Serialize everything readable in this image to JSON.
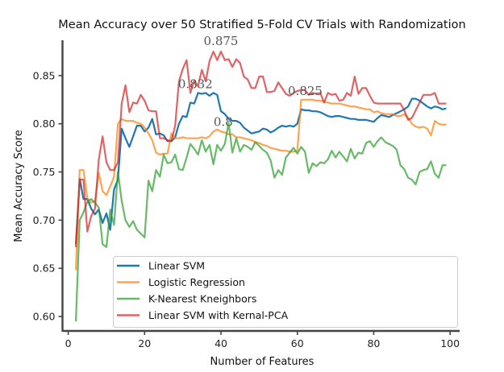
{
  "chart_data": {
    "type": "line",
    "title": "Mean Accuracy over 50 Stratified 5-Fold CV Trials with Randomization",
    "xlabel": "Number of Features",
    "ylabel": "Mean Accuracy Score",
    "xlim": [
      -1.5,
      102.5
    ],
    "ylim": [
      0.585,
      0.885
    ],
    "xticks": [
      0,
      20,
      40,
      60,
      80,
      100
    ],
    "yticks": [
      0.6,
      0.65,
      0.7,
      0.75,
      0.8,
      0.85
    ],
    "ytick_labels": [
      "0.60",
      "0.65",
      "0.70",
      "0.75",
      "0.80",
      "0.85"
    ],
    "grid": false,
    "legend_position": "lower-center",
    "series": [
      {
        "name": "Linear SVM",
        "color": "#1f77b4",
        "x": [
          2,
          3,
          4,
          5,
          6,
          7,
          8,
          9,
          10,
          11,
          12,
          13,
          14,
          15,
          16,
          17,
          18,
          19,
          20,
          21,
          22,
          23,
          24,
          25,
          26,
          27,
          28,
          29,
          30,
          31,
          32,
          33,
          34,
          35,
          36,
          37,
          38,
          39,
          40,
          41,
          42,
          43,
          44,
          45,
          46,
          47,
          48,
          49,
          50,
          51,
          52,
          53,
          54,
          55,
          56,
          57,
          58,
          59,
          60,
          61,
          62,
          63,
          64,
          65,
          66,
          67,
          68,
          69,
          70,
          71,
          72,
          73,
          74,
          75,
          76,
          77,
          78,
          79,
          80,
          81,
          82,
          83,
          84,
          85,
          86,
          87,
          88,
          89,
          90,
          91,
          92,
          93,
          94,
          95,
          96,
          97,
          98,
          99
        ],
        "y": [
          0.675,
          0.743,
          0.722,
          0.722,
          0.712,
          0.706,
          0.711,
          0.697,
          0.707,
          0.69,
          0.732,
          0.742,
          0.795,
          0.785,
          0.776,
          0.787,
          0.798,
          0.798,
          0.792,
          0.796,
          0.805,
          0.789,
          0.79,
          0.788,
          0.782,
          0.782,
          0.786,
          0.8,
          0.808,
          0.807,
          0.822,
          0.821,
          0.832,
          0.831,
          0.832,
          0.829,
          0.832,
          0.83,
          0.813,
          0.81,
          0.805,
          0.803,
          0.803,
          0.801,
          0.796,
          0.793,
          0.79,
          0.791,
          0.792,
          0.795,
          0.794,
          0.791,
          0.793,
          0.796,
          0.798,
          0.797,
          0.798,
          0.797,
          0.8,
          0.815,
          0.814,
          0.814,
          0.813,
          0.813,
          0.812,
          0.81,
          0.808,
          0.807,
          0.808,
          0.808,
          0.807,
          0.806,
          0.805,
          0.805,
          0.804,
          0.804,
          0.804,
          0.803,
          0.802,
          0.806,
          0.809,
          0.808,
          0.807,
          0.809,
          0.811,
          0.813,
          0.815,
          0.818,
          0.826,
          0.826,
          0.824,
          0.821,
          0.818,
          0.816,
          0.818,
          0.817,
          0.815,
          0.816
        ]
      },
      {
        "name": "Logistic Regression",
        "color": "#ff7f0e",
        "x": [
          2,
          3,
          4,
          5,
          6,
          7,
          8,
          9,
          10,
          11,
          12,
          13,
          14,
          15,
          16,
          17,
          18,
          19,
          20,
          21,
          22,
          23,
          24,
          25,
          26,
          27,
          28,
          29,
          30,
          31,
          32,
          33,
          34,
          35,
          36,
          37,
          38,
          39,
          40,
          41,
          42,
          43,
          44,
          45,
          46,
          47,
          48,
          49,
          50,
          51,
          52,
          53,
          54,
          55,
          56,
          57,
          58,
          59,
          60,
          61,
          62,
          63,
          64,
          65,
          66,
          67,
          68,
          69,
          70,
          71,
          72,
          73,
          74,
          75,
          76,
          77,
          78,
          79,
          80,
          81,
          82,
          83,
          84,
          85,
          86,
          87,
          88,
          89,
          90,
          91,
          92,
          93,
          94,
          95,
          96,
          97,
          98,
          99
        ],
        "y": [
          0.648,
          0.752,
          0.752,
          0.723,
          0.718,
          0.72,
          0.749,
          0.73,
          0.726,
          0.735,
          0.745,
          0.8,
          0.805,
          0.803,
          0.803,
          0.803,
          0.801,
          0.8,
          0.796,
          0.79,
          0.783,
          0.77,
          0.768,
          0.769,
          0.769,
          0.79,
          0.785,
          0.785,
          0.786,
          0.785,
          0.785,
          0.785,
          0.785,
          0.786,
          0.785,
          0.787,
          0.792,
          0.794,
          0.792,
          0.791,
          0.789,
          0.789,
          0.786,
          0.786,
          0.785,
          0.784,
          0.783,
          0.781,
          0.78,
          0.778,
          0.777,
          0.775,
          0.774,
          0.773,
          0.772,
          0.772,
          0.771,
          0.771,
          0.772,
          0.825,
          0.825,
          0.825,
          0.825,
          0.824,
          0.824,
          0.823,
          0.822,
          0.821,
          0.821,
          0.821,
          0.82,
          0.819,
          0.818,
          0.818,
          0.817,
          0.816,
          0.815,
          0.815,
          0.812,
          0.813,
          0.811,
          0.81,
          0.81,
          0.81,
          0.808,
          0.808,
          0.81,
          0.806,
          0.8,
          0.797,
          0.796,
          0.797,
          0.795,
          0.788,
          0.803,
          0.8,
          0.799,
          0.799
        ]
      },
      {
        "name": "K-Nearest Kneighbors",
        "color": "#2ca02c",
        "x": [
          2,
          3,
          4,
          5,
          6,
          7,
          8,
          9,
          10,
          11,
          12,
          13,
          14,
          15,
          16,
          17,
          18,
          19,
          20,
          21,
          22,
          23,
          24,
          25,
          26,
          27,
          28,
          29,
          30,
          31,
          32,
          33,
          34,
          35,
          36,
          37,
          38,
          39,
          40,
          41,
          42,
          43,
          44,
          45,
          46,
          47,
          48,
          49,
          50,
          51,
          52,
          53,
          54,
          55,
          56,
          57,
          58,
          59,
          60,
          61,
          62,
          63,
          64,
          65,
          66,
          67,
          68,
          69,
          70,
          71,
          72,
          73,
          74,
          75,
          76,
          77,
          78,
          79,
          80,
          81,
          82,
          83,
          84,
          85,
          86,
          87,
          88,
          89,
          90,
          91,
          92,
          93,
          94,
          95,
          96,
          97,
          98,
          99
        ],
        "y": [
          0.595,
          0.7,
          0.708,
          0.719,
          0.722,
          0.718,
          0.713,
          0.675,
          0.672,
          0.711,
          0.695,
          0.75,
          0.72,
          0.7,
          0.693,
          0.699,
          0.69,
          0.686,
          0.682,
          0.741,
          0.73,
          0.752,
          0.745,
          0.768,
          0.759,
          0.76,
          0.768,
          0.753,
          0.752,
          0.765,
          0.779,
          0.774,
          0.768,
          0.783,
          0.771,
          0.778,
          0.758,
          0.778,
          0.772,
          0.779,
          0.801,
          0.77,
          0.785,
          0.771,
          0.778,
          0.776,
          0.773,
          0.781,
          0.777,
          0.773,
          0.77,
          0.762,
          0.744,
          0.752,
          0.747,
          0.765,
          0.77,
          0.775,
          0.769,
          0.776,
          0.771,
          0.749,
          0.759,
          0.756,
          0.76,
          0.759,
          0.763,
          0.772,
          0.765,
          0.771,
          0.766,
          0.761,
          0.774,
          0.764,
          0.77,
          0.769,
          0.78,
          0.782,
          0.776,
          0.782,
          0.786,
          0.781,
          0.779,
          0.777,
          0.773,
          0.757,
          0.753,
          0.744,
          0.742,
          0.737,
          0.75,
          0.752,
          0.753,
          0.761,
          0.748,
          0.744,
          0.757,
          0.757
        ]
      },
      {
        "name": "Linear SVM with Kernal-PCA",
        "color": "#d62728",
        "x": [
          2,
          3,
          4,
          5,
          6,
          7,
          8,
          9,
          10,
          11,
          12,
          13,
          14,
          15,
          16,
          17,
          18,
          19,
          20,
          21,
          22,
          23,
          24,
          25,
          26,
          27,
          28,
          29,
          30,
          31,
          32,
          33,
          34,
          35,
          36,
          37,
          38,
          39,
          40,
          41,
          42,
          43,
          44,
          45,
          46,
          47,
          48,
          49,
          50,
          51,
          52,
          53,
          54,
          55,
          56,
          57,
          58,
          59,
          60,
          61,
          62,
          63,
          64,
          65,
          66,
          67,
          68,
          69,
          70,
          71,
          72,
          73,
          74,
          75,
          76,
          77,
          78,
          79,
          80,
          81,
          82,
          83,
          84,
          85,
          86,
          87,
          88,
          89,
          90,
          91,
          92,
          93,
          94,
          95,
          96,
          97,
          98,
          99
        ],
        "y": [
          0.672,
          0.742,
          0.742,
          0.688,
          0.704,
          0.712,
          0.763,
          0.787,
          0.76,
          0.752,
          0.752,
          0.76,
          0.821,
          0.84,
          0.812,
          0.822,
          0.821,
          0.83,
          0.824,
          0.814,
          0.813,
          0.813,
          0.785,
          0.785,
          0.783,
          0.782,
          0.798,
          0.844,
          0.857,
          0.866,
          0.832,
          0.845,
          0.839,
          0.856,
          0.844,
          0.865,
          0.875,
          0.866,
          0.875,
          0.866,
          0.867,
          0.859,
          0.867,
          0.863,
          0.849,
          0.846,
          0.837,
          0.837,
          0.849,
          0.849,
          0.833,
          0.833,
          0.834,
          0.843,
          0.837,
          0.831,
          0.829,
          0.832,
          0.834,
          0.835,
          0.835,
          0.83,
          0.832,
          0.831,
          0.832,
          0.822,
          0.832,
          0.83,
          0.831,
          0.824,
          0.825,
          0.832,
          0.829,
          0.849,
          0.831,
          0.837,
          0.837,
          0.829,
          0.822,
          0.821,
          0.821,
          0.821,
          0.821,
          0.821,
          0.821,
          0.821,
          0.814,
          0.804,
          0.806,
          0.814,
          0.822,
          0.83,
          0.83,
          0.83,
          0.832,
          0.821,
          0.821,
          0.821
        ]
      }
    ],
    "annotations": [
      {
        "text": "0.875",
        "x": 40,
        "y": 0.875,
        "series": "Linear SVM with Kernal-PCA"
      },
      {
        "text": "0.832",
        "x": 35,
        "y": 0.832,
        "series": "Linear SVM"
      },
      {
        "text": "0.825",
        "x": 61,
        "y": 0.825,
        "series": "Logistic Regression"
      },
      {
        "text": "0.8",
        "x": 41,
        "y": 0.8,
        "series": "K-Nearest Kneighbors"
      }
    ]
  }
}
